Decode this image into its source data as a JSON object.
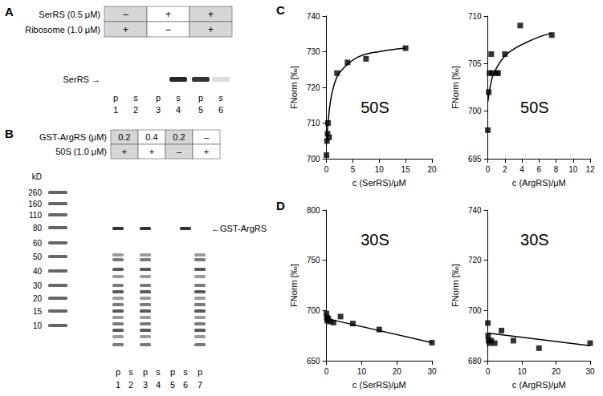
{
  "panel_labels": [
    "A",
    "B",
    "C",
    "D"
  ],
  "panels": {
    "A": {
      "rows": [
        {
          "label": "SerRS (0.5 μM)",
          "cells": [
            "–",
            "+",
            "+"
          ]
        },
        {
          "label": "Ribosome (1.0 μM)",
          "cells": [
            "+",
            "–",
            "+"
          ]
        }
      ],
      "band_label": "SerRS →",
      "lanes": [
        "p",
        "s",
        "p",
        "s",
        "p",
        "s"
      ],
      "lane_numbers": [
        1,
        2,
        3,
        4,
        5,
        6
      ]
    },
    "B": {
      "rows": [
        {
          "label": "GST-ArgRS (μM)",
          "cells": [
            "0.2",
            "0.4",
            "0.2",
            "–"
          ]
        },
        {
          "label": "50S (1.0 μM)",
          "cells": [
            "+",
            "+",
            "–",
            "+"
          ]
        }
      ],
      "marker_unit": "kD",
      "marker_sizes": [
        260,
        160,
        110,
        80,
        60,
        50,
        40,
        30,
        20,
        15,
        10
      ],
      "band_label": "←GST-ArgRS",
      "lanes": [
        "p",
        "s",
        "p",
        "s",
        "p",
        "s",
        "p"
      ],
      "lane_numbers": [
        1,
        2,
        3,
        4,
        5,
        6,
        7
      ]
    }
  },
  "chart_data": [
    {
      "type": "scatter",
      "annotation": "50S",
      "xlabel": "c (SerRS)/μM",
      "ylabel": "FNorm [‰]",
      "xlim": [
        0,
        20
      ],
      "xticks": [
        0,
        5,
        10,
        15,
        20
      ],
      "ylim": [
        700,
        740
      ],
      "yticks": [
        700,
        710,
        720,
        730,
        740
      ],
      "grid": false,
      "series": [
        {
          "type": "scatter",
          "marker": "square",
          "color": "#000000",
          "x": [
            0,
            0.1,
            0.2,
            0.3,
            0.5,
            2,
            4,
            7.5,
            15
          ],
          "values": [
            701,
            705,
            707,
            710,
            706,
            724,
            727,
            728,
            731
          ]
        },
        {
          "type": "line",
          "line_style": "solid",
          "color": "#000000",
          "x": [
            0,
            0.5,
            1,
            2,
            3,
            4,
            6,
            8,
            10,
            12,
            15
          ],
          "values": [
            704,
            713,
            718,
            723,
            725,
            726.5,
            728.5,
            729.5,
            730,
            730.5,
            731
          ]
        }
      ]
    },
    {
      "type": "scatter",
      "annotation": "50S",
      "xlabel": "c (ArgRS)/μM",
      "ylabel": "FNorm [‰]",
      "xlim": [
        0,
        12
      ],
      "xticks": [
        0,
        2,
        4,
        6,
        8,
        10,
        12
      ],
      "ylim": [
        695,
        710
      ],
      "yticks": [
        695,
        700,
        705,
        710
      ],
      "grid": false,
      "series": [
        {
          "type": "scatter",
          "marker": "square",
          "color": "#000000",
          "x": [
            0,
            0.1,
            0.2,
            0.4,
            0.5,
            1,
            1.2,
            2,
            3.8,
            7.5
          ],
          "values": [
            698,
            702,
            704,
            706,
            704,
            704,
            704,
            706,
            709,
            708
          ]
        },
        {
          "type": "line",
          "line_style": "solid",
          "color": "#000000",
          "x": [
            0,
            0.5,
            1,
            2,
            3,
            4,
            6,
            7.5
          ],
          "values": [
            701,
            703.5,
            704.5,
            705.8,
            706.5,
            707,
            707.8,
            708.2
          ]
        }
      ]
    },
    {
      "type": "scatter",
      "annotation": "30S",
      "xlabel": "c (SerRS)/μM",
      "ylabel": "FNorm [‰]",
      "xlim": [
        0,
        30
      ],
      "xticks": [
        0,
        10,
        20,
        30
      ],
      "ylim": [
        650,
        800
      ],
      "yticks": [
        650,
        700,
        750,
        800
      ],
      "grid": false,
      "series": [
        {
          "type": "scatter",
          "marker": "square",
          "color": "#000000",
          "x": [
            0,
            0.1,
            0.2,
            0.5,
            1,
            2,
            4,
            7.5,
            15,
            30
          ],
          "values": [
            697,
            693,
            690,
            692,
            689,
            688,
            694,
            687,
            681,
            668
          ]
        },
        {
          "type": "line",
          "line_style": "solid",
          "color": "#000000",
          "x": [
            0,
            30
          ],
          "values": [
            692,
            668
          ]
        }
      ]
    },
    {
      "type": "scatter",
      "annotation": "30S",
      "xlabel": "c (ArgRS)/μM",
      "ylabel": "FNorm [‰]",
      "xlim": [
        0,
        30
      ],
      "xticks": [
        0,
        10,
        20,
        30
      ],
      "ylim": [
        680,
        740
      ],
      "yticks": [
        680,
        700,
        720,
        740
      ],
      "grid": false,
      "series": [
        {
          "type": "scatter",
          "marker": "square",
          "color": "#000000",
          "x": [
            0,
            0.1,
            0.2,
            0.5,
            1,
            2,
            4,
            7.5,
            15,
            30
          ],
          "values": [
            695,
            690,
            688,
            687,
            688,
            687,
            692,
            688,
            685,
            687
          ]
        },
        {
          "type": "line",
          "line_style": "solid",
          "color": "#000000",
          "x": [
            0,
            30
          ],
          "values": [
            691,
            686
          ]
        }
      ]
    }
  ]
}
